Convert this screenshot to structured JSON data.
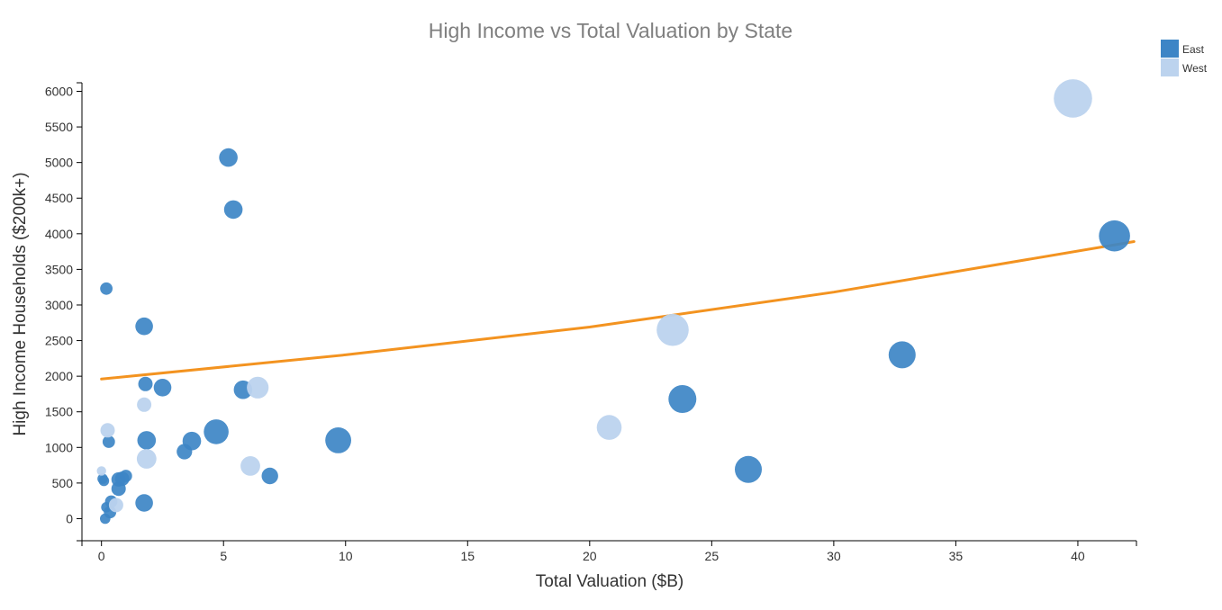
{
  "colors": {
    "east": "#3d85c6",
    "west": "#bcd3ee",
    "trend": "#f39320"
  },
  "chart_data": {
    "type": "scatter",
    "title": "High Income  vs Total Valuation by State",
    "xlabel": "Total Valuation ($B)",
    "ylabel": "High Income Households ($200k+)",
    "xlim": [
      -0.8,
      42.4
    ],
    "ylim": [
      -310,
      6120
    ],
    "xticks": [
      0,
      5,
      10,
      15,
      20,
      25,
      30,
      35,
      40
    ],
    "yticks": [
      0,
      500,
      1000,
      1500,
      2000,
      2500,
      3000,
      3500,
      4000,
      4500,
      5000,
      5500,
      6000
    ],
    "grid": false,
    "legend": "top-right",
    "size_encoded": true,
    "series": [
      {
        "name": "East",
        "color": "#3d85c6",
        "points": [
          {
            "x": 0.2,
            "y": 3230,
            "s": 0.6
          },
          {
            "x": 0.3,
            "y": 1080,
            "s": 0.6
          },
          {
            "x": 0.05,
            "y": 560,
            "s": 0.5
          },
          {
            "x": 0.1,
            "y": 530,
            "s": 0.5
          },
          {
            "x": 0.2,
            "y": 160,
            "s": 0.5
          },
          {
            "x": 0.15,
            "y": 0,
            "s": 0.5
          },
          {
            "x": 0.35,
            "y": 90,
            "s": 0.6
          },
          {
            "x": 0.4,
            "y": 240,
            "s": 0.6
          },
          {
            "x": 0.7,
            "y": 420,
            "s": 0.7
          },
          {
            "x": 0.7,
            "y": 550,
            "s": 0.7
          },
          {
            "x": 0.85,
            "y": 560,
            "s": 0.7
          },
          {
            "x": 1.0,
            "y": 600,
            "s": 0.6
          },
          {
            "x": 1.75,
            "y": 220,
            "s": 0.85
          },
          {
            "x": 1.75,
            "y": 2700,
            "s": 0.85
          },
          {
            "x": 1.8,
            "y": 1890,
            "s": 0.7
          },
          {
            "x": 1.85,
            "y": 1100,
            "s": 0.9
          },
          {
            "x": 2.5,
            "y": 1840,
            "s": 0.85
          },
          {
            "x": 3.4,
            "y": 940,
            "s": 0.75
          },
          {
            "x": 3.7,
            "y": 1090,
            "s": 0.9
          },
          {
            "x": 4.7,
            "y": 1220,
            "s": 1.2
          },
          {
            "x": 5.2,
            "y": 5070,
            "s": 0.9
          },
          {
            "x": 5.4,
            "y": 4340,
            "s": 0.9
          },
          {
            "x": 5.8,
            "y": 1810,
            "s": 0.9
          },
          {
            "x": 6.9,
            "y": 600,
            "s": 0.8
          },
          {
            "x": 9.7,
            "y": 1100,
            "s": 1.25
          },
          {
            "x": 23.8,
            "y": 1680,
            "s": 1.35
          },
          {
            "x": 26.5,
            "y": 690,
            "s": 1.3
          },
          {
            "x": 32.8,
            "y": 2300,
            "s": 1.3
          },
          {
            "x": 41.5,
            "y": 3970,
            "s": 1.5
          }
        ]
      },
      {
        "name": "West",
        "color": "#bcd3ee",
        "points": [
          {
            "x": 0.0,
            "y": 670,
            "s": 0.45
          },
          {
            "x": 0.25,
            "y": 1240,
            "s": 0.7
          },
          {
            "x": 0.6,
            "y": 190,
            "s": 0.7
          },
          {
            "x": 1.75,
            "y": 1600,
            "s": 0.7
          },
          {
            "x": 1.85,
            "y": 840,
            "s": 0.95
          },
          {
            "x": 6.1,
            "y": 740,
            "s": 0.95
          },
          {
            "x": 6.4,
            "y": 1840,
            "s": 1.05
          },
          {
            "x": 20.8,
            "y": 1280,
            "s": 1.2
          },
          {
            "x": 23.4,
            "y": 2650,
            "s": 1.55
          },
          {
            "x": 39.8,
            "y": 5900,
            "s": 1.85
          }
        ]
      }
    ],
    "trendline": {
      "color": "#f39320",
      "points": [
        {
          "x": 0,
          "y": 1960
        },
        {
          "x": 10,
          "y": 2300
        },
        {
          "x": 20,
          "y": 2690
        },
        {
          "x": 30,
          "y": 3180
        },
        {
          "x": 42.3,
          "y": 3890
        }
      ]
    }
  }
}
